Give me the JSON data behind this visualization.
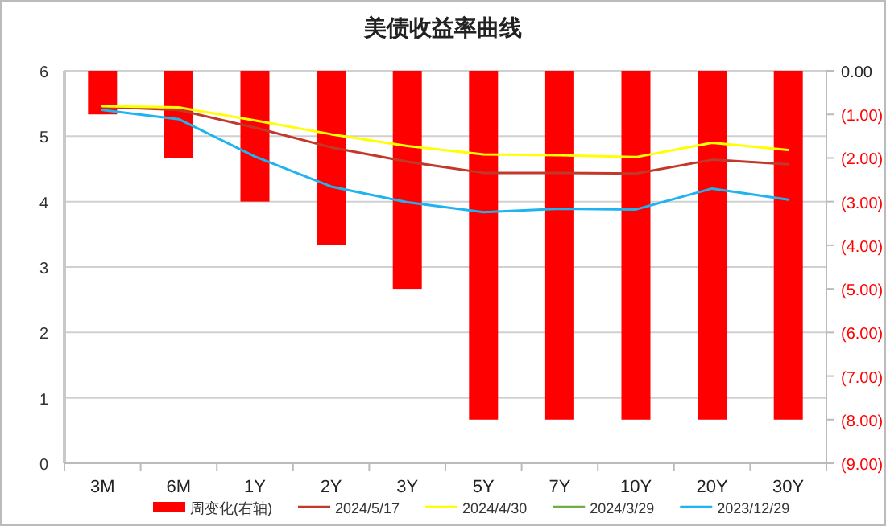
{
  "chart_data": {
    "type": "line",
    "title": "美债收益率曲线",
    "categories": [
      "3M",
      "6M",
      "1Y",
      "2Y",
      "3Y",
      "5Y",
      "7Y",
      "10Y",
      "20Y",
      "30Y"
    ],
    "series": [
      {
        "name": "周变化(右轴)",
        "type": "bar",
        "axis": "y2",
        "color": "#ff0000",
        "values": [
          -1,
          -2,
          -3,
          -4,
          -5,
          -8,
          -8,
          -8,
          -8,
          -8
        ]
      },
      {
        "name": "2024/5/17",
        "color": "#c0392b",
        "values": [
          5.45,
          5.4,
          5.13,
          4.83,
          4.61,
          4.44,
          4.44,
          4.43,
          4.64,
          4.57
        ]
      },
      {
        "name": "2024/4/30",
        "color": "#ffff00",
        "values": [
          5.46,
          5.44,
          5.24,
          5.03,
          4.85,
          4.72,
          4.71,
          4.68,
          4.9,
          4.79
        ]
      },
      {
        "name": "2024/3/29",
        "color": "#70ad47",
        "values": [
          null,
          null,
          null,
          null,
          null,
          null,
          null,
          null,
          null,
          null
        ]
      },
      {
        "name": "2023/12/29",
        "color": "#1fb4ef",
        "values": [
          5.4,
          5.26,
          4.69,
          4.23,
          3.99,
          3.84,
          3.89,
          3.88,
          4.2,
          4.03
        ]
      }
    ],
    "ylim": [
      0,
      6
    ],
    "yticks": [
      0,
      1,
      2,
      3,
      4,
      5,
      6
    ],
    "y2lim": [
      -9,
      0
    ],
    "y2ticks": [
      {
        "value": 0,
        "label": "0.00"
      },
      {
        "value": -1,
        "label": "(1.00)"
      },
      {
        "value": -2,
        "label": "(2.00)"
      },
      {
        "value": -3,
        "label": "(3.00)"
      },
      {
        "value": -4,
        "label": "(4.00)"
      },
      {
        "value": -5,
        "label": "(5.00)"
      },
      {
        "value": -6,
        "label": "(6.00)"
      },
      {
        "value": -7,
        "label": "(7.00)"
      },
      {
        "value": -8,
        "label": "(8.00)"
      },
      {
        "value": -9,
        "label": "(9.00)"
      }
    ],
    "grid": "y",
    "legend": "bottom"
  }
}
